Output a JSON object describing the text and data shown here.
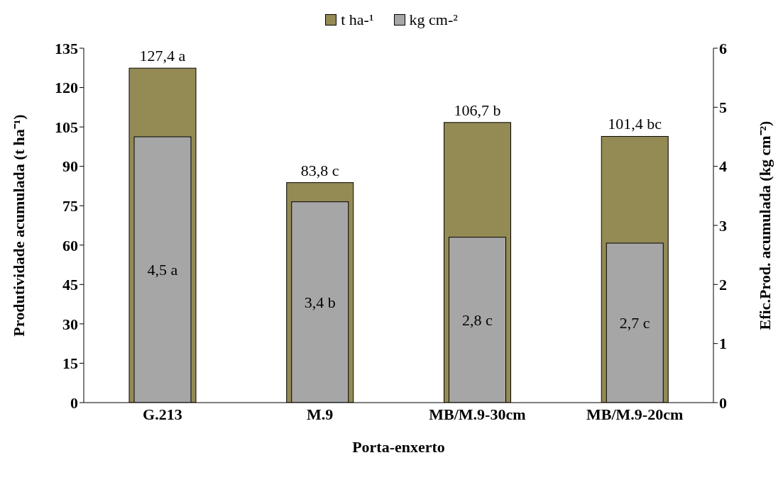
{
  "chart_data": {
    "type": "bar",
    "xlabel": "Porta-enxerto",
    "ylabel": "Produtividade acumulada (t ha⁻¹)",
    "y2label": "Efic.Prod. acumulada (kg cm⁻²)",
    "categories": [
      "G.213",
      "M.9",
      "MB/M.9-30cm",
      "MB/M.9-20cm"
    ],
    "series": [
      {
        "name": "t ha-¹",
        "color": "#948a54",
        "values": [
          127.4,
          83.8,
          106.7,
          101.4
        ],
        "value_labels": [
          "127,4 a",
          "83,8 c",
          "106,7 b",
          "101,4 bc"
        ]
      },
      {
        "name": "kg cm-²",
        "color": "#a6a6a6",
        "axis": "y2",
        "values": [
          4.5,
          3.4,
          2.8,
          2.7
        ],
        "value_labels": [
          "4,5 a",
          "3,4 b",
          "2,8 c",
          "2,7 c"
        ]
      }
    ],
    "ylim": [
      0,
      135
    ],
    "yticks": [
      0,
      15,
      30,
      45,
      60,
      75,
      90,
      105,
      120,
      135
    ],
    "y2lim": [
      0,
      6
    ],
    "y2ticks": [
      0,
      1,
      2,
      3,
      4,
      5,
      6
    ],
    "legend": "top"
  }
}
